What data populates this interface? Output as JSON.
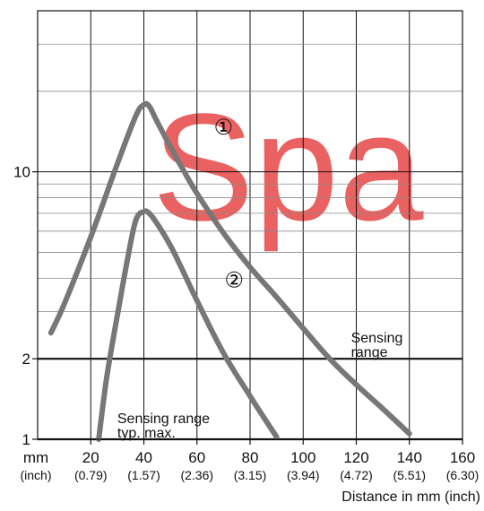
{
  "chart_data": {
    "type": "line",
    "ylabel_unit": "",
    "xlabel": "Distance in mm (inch)",
    "x_unit_label": "mm",
    "x_unit_sub_label": "(inch)",
    "xlim": [
      0,
      160
    ],
    "ylim": [
      1,
      40
    ],
    "y_scale": "log",
    "x_ticks": [
      {
        "value": 20,
        "label": "20",
        "sub": "(0.79)"
      },
      {
        "value": 40,
        "label": "40",
        "sub": "(1.57)"
      },
      {
        "value": 60,
        "label": "60",
        "sub": "(2.36)"
      },
      {
        "value": 80,
        "label": "80",
        "sub": "(3.15)"
      },
      {
        "value": 100,
        "label": "100",
        "sub": "(3.94)"
      },
      {
        "value": 120,
        "label": "120",
        "sub": "(4.72)"
      },
      {
        "value": 140,
        "label": "140",
        "sub": "(5.51)"
      },
      {
        "value": 160,
        "label": "160",
        "sub": "(6.30)"
      }
    ],
    "y_ticks": [
      {
        "value": 1,
        "label": "1"
      },
      {
        "value": 2,
        "label": "2"
      },
      {
        "value": 10,
        "label": "10"
      }
    ],
    "y_minor_grid": [
      3,
      4,
      5,
      6,
      7,
      8,
      9,
      20,
      30
    ],
    "grid": true,
    "series": [
      {
        "name": "①",
        "x": [
          5,
          10,
          20,
          30,
          37,
          40,
          42,
          45,
          50,
          55,
          60,
          70,
          80,
          90,
          100,
          110,
          120,
          130,
          140
        ],
        "y": [
          2.5,
          3.2,
          5.7,
          10.7,
          16.2,
          17.8,
          17.6,
          15.4,
          12.4,
          10.1,
          8.3,
          5.9,
          4.4,
          3.4,
          2.6,
          2.0,
          1.6,
          1.3,
          1.05
        ]
      },
      {
        "name": "②",
        "x": [
          23,
          26,
          30,
          34,
          37,
          40,
          42,
          45,
          50,
          55,
          60,
          70,
          80,
          90
        ],
        "y": [
          1.0,
          1.7,
          2.9,
          4.8,
          6.6,
          7.1,
          7.0,
          6.4,
          5.3,
          4.2,
          3.3,
          2.1,
          1.45,
          1.02
        ]
      }
    ],
    "annotations": [
      {
        "text": "①",
        "x": 70,
        "y": 13.8
      },
      {
        "text": "②",
        "x": 74,
        "y": 3.7
      },
      {
        "text_lines": [
          "Sensing",
          "range"
        ],
        "x": 118,
        "y": 2.3
      },
      {
        "text_lines": [
          "Sensing range",
          "typ. max."
        ],
        "x": 30,
        "y": 1.15
      }
    ],
    "reference_lines": [
      {
        "y": 2
      },
      {
        "y": 1
      }
    ],
    "colors": {
      "series": "#777777",
      "axis": "#111111",
      "major_grid": "#111111",
      "minor_grid": "#8a8a8a",
      "watermark": "#e64545"
    },
    "watermark_text": "Spa"
  }
}
